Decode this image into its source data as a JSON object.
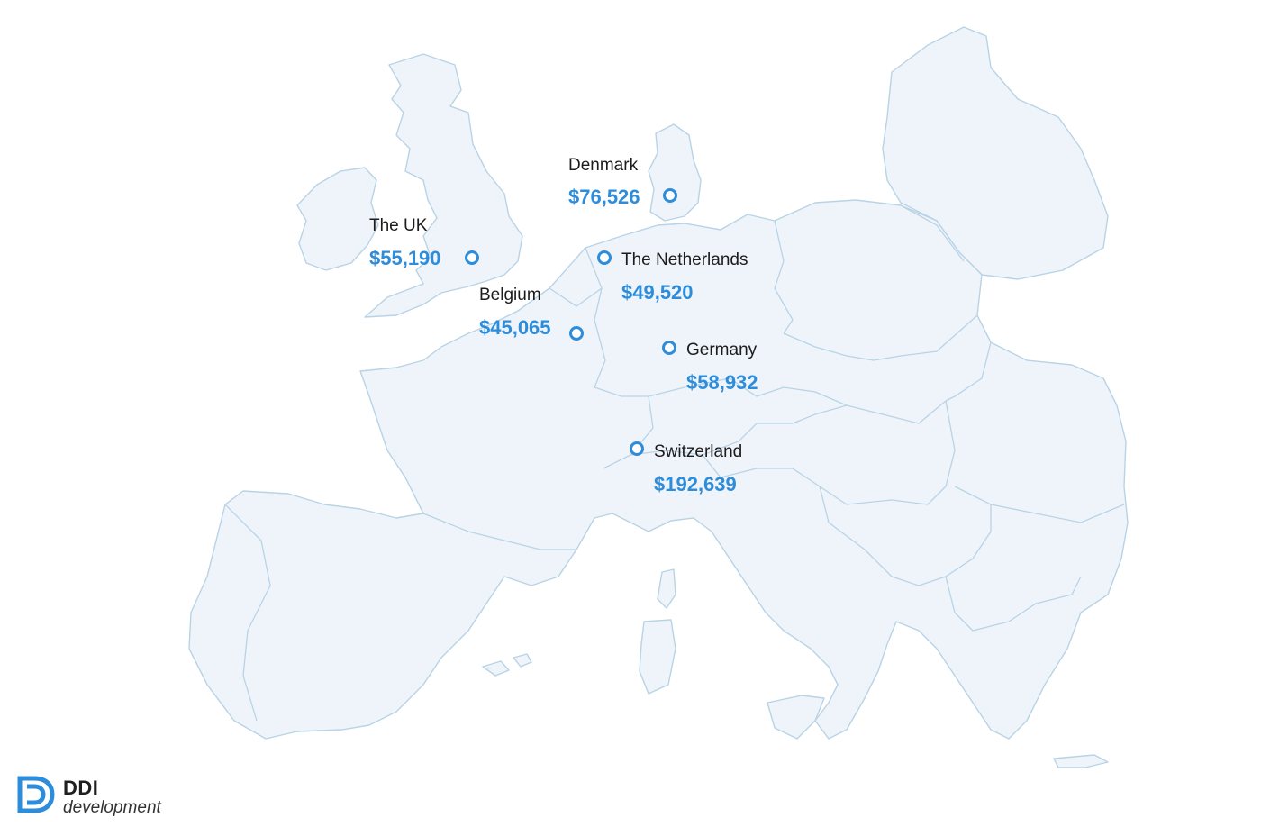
{
  "map": {
    "markers": [
      {
        "id": "uk",
        "country": "The UK",
        "salary": "$55,190"
      },
      {
        "id": "denmark",
        "country": "Denmark",
        "salary": "$76,526"
      },
      {
        "id": "netherlands",
        "country": "The Netherlands",
        "salary": "$49,520"
      },
      {
        "id": "belgium",
        "country": "Belgium",
        "salary": "$45,065"
      },
      {
        "id": "germany",
        "country": "Germany",
        "salary": "$58,932"
      },
      {
        "id": "switzerland",
        "country": "Switzerland",
        "salary": "$192,639"
      }
    ],
    "colors": {
      "land": "#eef4fa",
      "border": "#b9d3e6",
      "accent": "#2e8ddb"
    }
  },
  "logo": {
    "name": "DDI",
    "sub": "development"
  }
}
